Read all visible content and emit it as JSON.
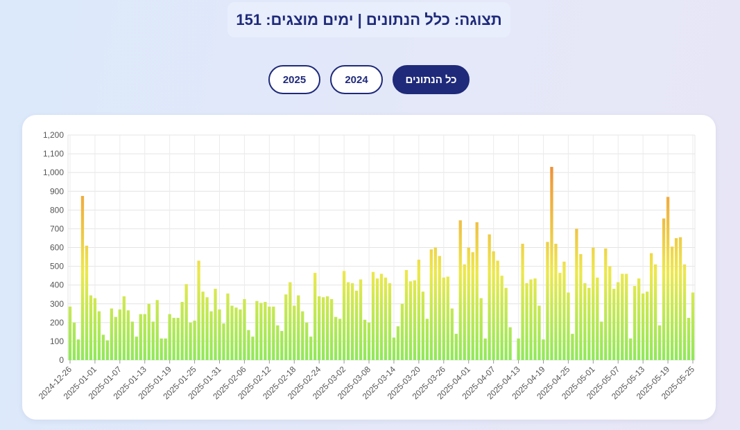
{
  "status": {
    "text": "תצוגה: כלל הנתונים | ימים מוצגים: 151"
  },
  "filters": [
    {
      "label": "2025",
      "active": false
    },
    {
      "label": "2024",
      "active": false
    },
    {
      "label": "כל הנתונים",
      "active": true
    }
  ],
  "chart_data": {
    "type": "bar",
    "ylim": [
      0,
      1200
    ],
    "yticks": [
      "0",
      "100",
      "200",
      "300",
      "400",
      "500",
      "600",
      "700",
      "800",
      "900",
      "1,000",
      "1,100",
      "1,200"
    ],
    "grid": true,
    "xtick_labels": [
      "2024-12-26",
      "2025-01-01",
      "2025-01-07",
      "2025-01-13",
      "2025-01-19",
      "2025-01-25",
      "2025-01-31",
      "2025-02-06",
      "2025-02-12",
      "2025-02-18",
      "2025-02-24",
      "2025-03-02",
      "2025-03-08",
      "2025-03-14",
      "2025-03-20",
      "2025-03-26",
      "2025-04-01",
      "2025-04-07",
      "2025-04-13",
      "2025-04-19",
      "2025-04-25",
      "2025-05-01",
      "2025-05-07",
      "2025-05-13",
      "2025-05-19",
      "2025-05-25"
    ],
    "start_date": "2024-12-26",
    "colors": {
      "low": "#90e85a",
      "mid": "#ede84d",
      "high": "#f0a23c",
      "peak": "#e8582a"
    },
    "values": [
      285,
      200,
      110,
      875,
      610,
      345,
      330,
      260,
      135,
      105,
      275,
      230,
      270,
      340,
      265,
      205,
      125,
      245,
      245,
      300,
      205,
      320,
      115,
      115,
      245,
      225,
      225,
      310,
      405,
      200,
      210,
      530,
      365,
      335,
      260,
      380,
      270,
      195,
      355,
      290,
      280,
      270,
      325,
      160,
      125,
      315,
      305,
      310,
      285,
      285,
      185,
      155,
      350,
      415,
      290,
      345,
      260,
      200,
      125,
      465,
      340,
      335,
      340,
      325,
      230,
      220,
      475,
      415,
      410,
      370,
      430,
      215,
      200,
      470,
      435,
      460,
      440,
      410,
      120,
      180,
      300,
      480,
      420,
      425,
      535,
      365,
      220,
      590,
      600,
      555,
      440,
      445,
      275,
      140,
      745,
      510,
      600,
      575,
      735,
      330,
      115,
      670,
      580,
      530,
      450,
      385,
      175,
      0,
      115,
      620,
      410,
      430,
      435,
      290,
      110,
      630,
      1030,
      620,
      465,
      525,
      360,
      140,
      700,
      565,
      410,
      385,
      600,
      440,
      205,
      595,
      500,
      380,
      415,
      460,
      460,
      115,
      395,
      435,
      355,
      365,
      570,
      510,
      185,
      755,
      870,
      605,
      650,
      655,
      510,
      225,
      360
    ]
  }
}
